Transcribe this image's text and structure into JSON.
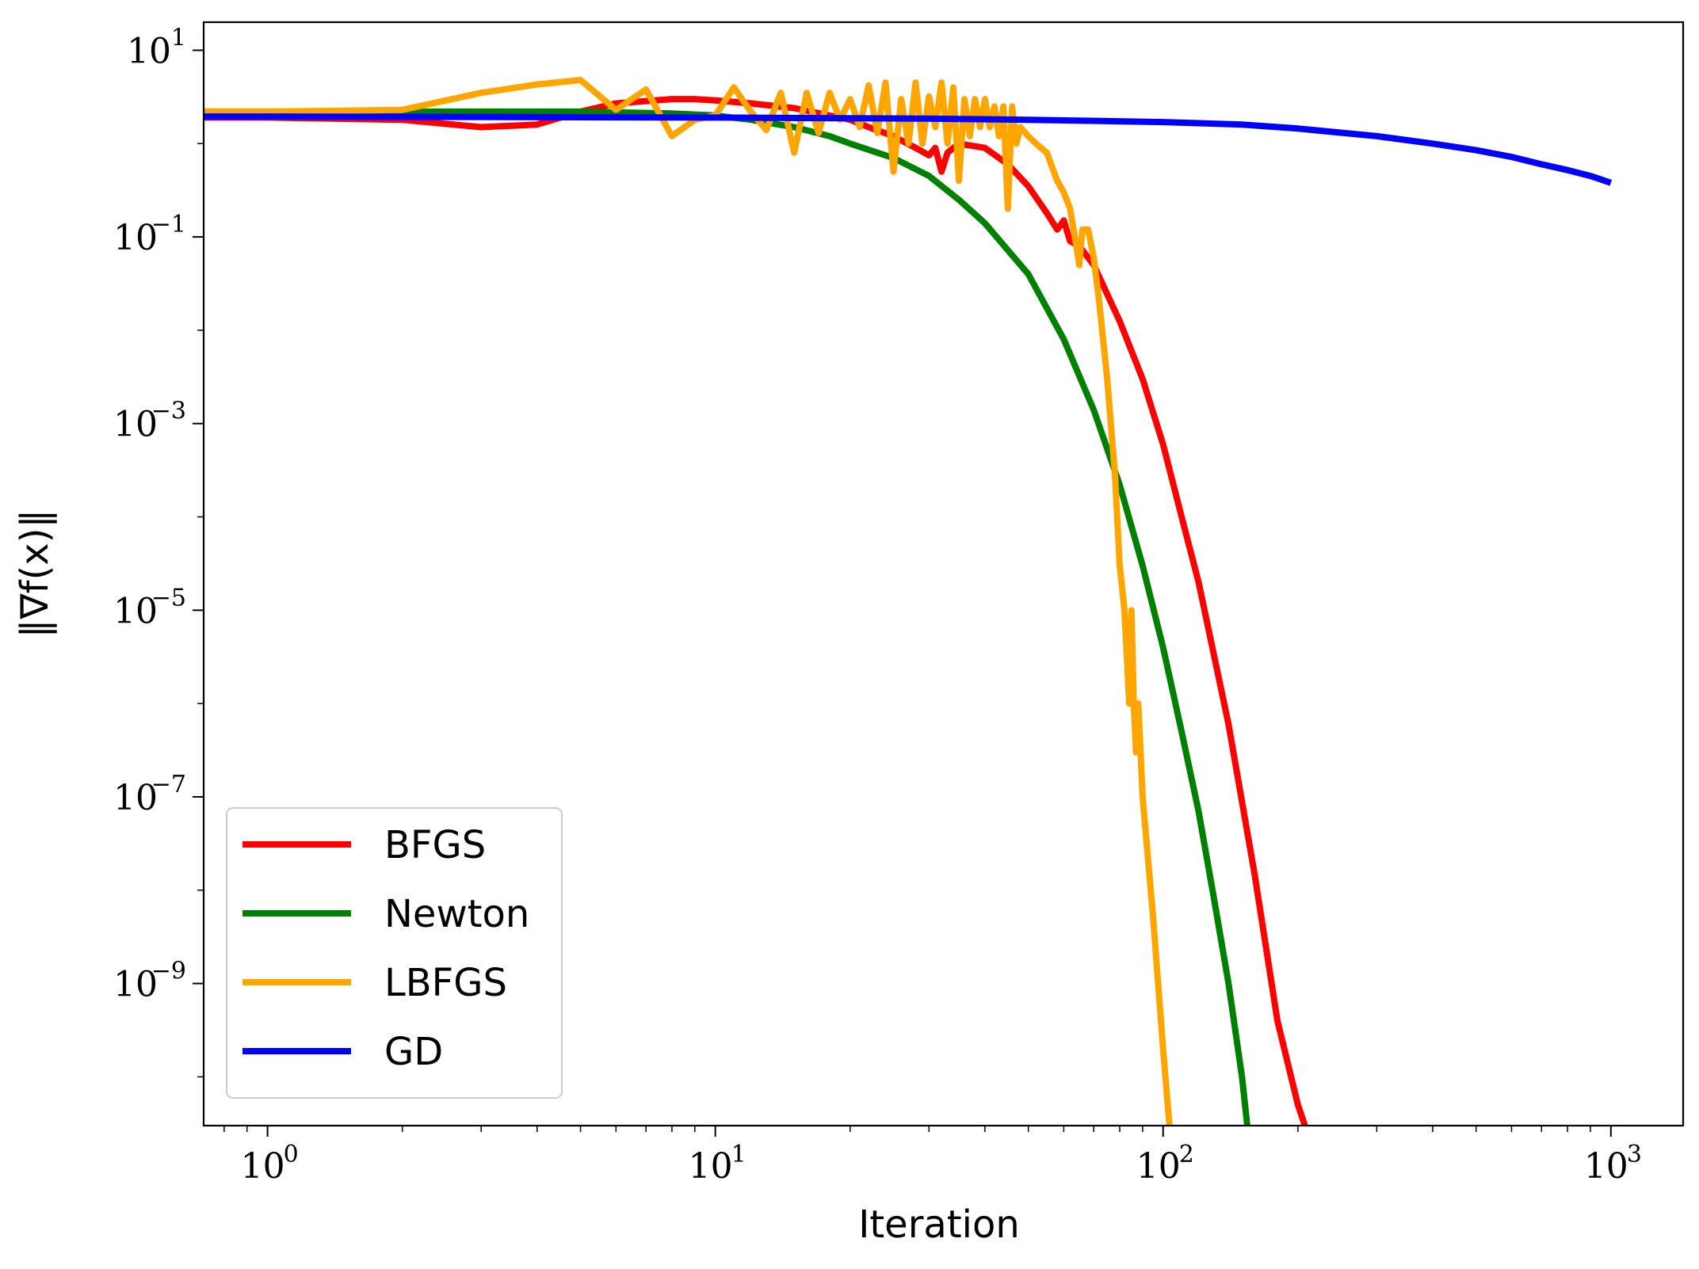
{
  "chart_data": {
    "type": "line",
    "xscale": "log",
    "yscale": "log",
    "xlabel": "Iteration",
    "ylabel": "‖∇f(x)‖",
    "xlim": [
      0.72,
      1450
    ],
    "ylim": [
      3e-11,
      20
    ],
    "xticks": [
      {
        "value": 1,
        "base": "10",
        "exp": "0"
      },
      {
        "value": 10,
        "base": "10",
        "exp": "1"
      },
      {
        "value": 100,
        "base": "10",
        "exp": "2"
      },
      {
        "value": 1000,
        "base": "10",
        "exp": "3"
      }
    ],
    "yticks": [
      {
        "value": 10,
        "base": "10",
        "exp": "1"
      },
      {
        "value": 0.1,
        "base": "10",
        "exp": "−1"
      },
      {
        "value": 0.001,
        "base": "10",
        "exp": "−3"
      },
      {
        "value": 1e-05,
        "base": "10",
        "exp": "−5"
      },
      {
        "value": 1e-07,
        "base": "10",
        "exp": "−7"
      },
      {
        "value": 1e-09,
        "base": "10",
        "exp": "−9"
      }
    ],
    "legend_position": "lower-left",
    "grid": false,
    "series": [
      {
        "name": "BFGS",
        "color": "#ff0000",
        "x": [
          0.72,
          1,
          2,
          3,
          4,
          5,
          6,
          8,
          9,
          10,
          12,
          15,
          18,
          20,
          22,
          25,
          28,
          30,
          31,
          32,
          33,
          35,
          40,
          45,
          50,
          55,
          58,
          60,
          62,
          65,
          70,
          80,
          90,
          100,
          110,
          120,
          140,
          160,
          180,
          200,
          220
        ],
        "y": [
          1.9,
          1.9,
          1.8,
          1.5,
          1.6,
          2.2,
          2.7,
          3.0,
          3.0,
          2.9,
          2.7,
          2.4,
          2.0,
          1.8,
          1.5,
          1.2,
          0.9,
          0.75,
          0.9,
          0.5,
          0.8,
          1.0,
          0.9,
          0.6,
          0.35,
          0.18,
          0.12,
          0.15,
          0.09,
          0.08,
          0.05,
          0.0125,
          0.003,
          0.0006,
          0.0001,
          2e-05,
          6e-07,
          1.5e-08,
          4e-10,
          5e-11,
          1.3e-11
        ]
      },
      {
        "name": "Newton",
        "color": "#008000",
        "x": [
          0.72,
          1,
          2,
          3,
          5,
          8,
          10,
          12,
          15,
          18,
          20,
          25,
          30,
          35,
          40,
          50,
          60,
          70,
          80,
          90,
          100,
          110,
          120,
          130,
          140,
          150,
          158
        ],
        "y": [
          2.2,
          2.2,
          2.2,
          2.2,
          2.2,
          2.1,
          2.0,
          1.8,
          1.5,
          1.2,
          1.0,
          0.7,
          0.45,
          0.25,
          0.14,
          0.04,
          0.008,
          0.0014,
          0.00022,
          3e-05,
          4e-06,
          5e-07,
          7e-08,
          8e-09,
          1e-09,
          1e-10,
          1e-11
        ]
      },
      {
        "name": "LBFGS",
        "color": "#ffa500",
        "x": [
          0.72,
          1,
          2,
          3,
          4,
          5,
          6,
          7,
          8,
          9,
          10,
          11,
          12,
          13,
          14,
          15,
          16,
          17,
          18,
          19,
          20,
          21,
          22,
          23,
          24,
          25,
          26,
          27,
          28,
          29,
          30,
          31,
          32,
          33,
          34,
          35,
          36,
          37,
          38,
          39,
          40,
          41,
          42,
          43,
          44,
          45,
          46,
          47,
          48,
          50,
          52,
          55,
          58,
          60,
          62,
          64,
          65,
          66,
          68,
          70,
          72,
          75,
          78,
          80,
          82,
          84,
          85,
          86,
          87,
          88,
          90,
          95,
          100,
          105
        ],
        "y": [
          2.2,
          2.2,
          2.3,
          3.5,
          4.3,
          4.8,
          2.3,
          3.8,
          1.2,
          1.8,
          2.0,
          4.0,
          2.2,
          1.4,
          3.5,
          0.8,
          3.5,
          1.3,
          3.5,
          1.8,
          3.0,
          1.5,
          4.2,
          1.3,
          4.5,
          0.5,
          3.0,
          1.0,
          4.5,
          1.0,
          3.2,
          1.5,
          4.5,
          1.0,
          4.0,
          0.4,
          3.0,
          1.2,
          3.0,
          1.5,
          3.0,
          1.5,
          2.5,
          1.2,
          2.5,
          0.2,
          2.5,
          1.0,
          1.5,
          1.2,
          1.0,
          0.8,
          0.4,
          0.3,
          0.2,
          0.08,
          0.05,
          0.12,
          0.12,
          0.06,
          0.02,
          0.003,
          0.0003,
          3e-05,
          1e-05,
          1e-06,
          1e-05,
          1e-06,
          3e-07,
          1e-06,
          1e-07,
          5e-09,
          2e-10,
          1.2e-11
        ]
      },
      {
        "name": "GD",
        "color": "#0000ff",
        "x": [
          0.72,
          1,
          10,
          30,
          50,
          100,
          150,
          200,
          300,
          400,
          500,
          600,
          700,
          800,
          900,
          1000
        ],
        "y": [
          1.95,
          1.95,
          1.9,
          1.85,
          1.8,
          1.7,
          1.6,
          1.45,
          1.2,
          1.0,
          0.85,
          0.72,
          0.6,
          0.52,
          0.45,
          0.38
        ]
      }
    ]
  }
}
